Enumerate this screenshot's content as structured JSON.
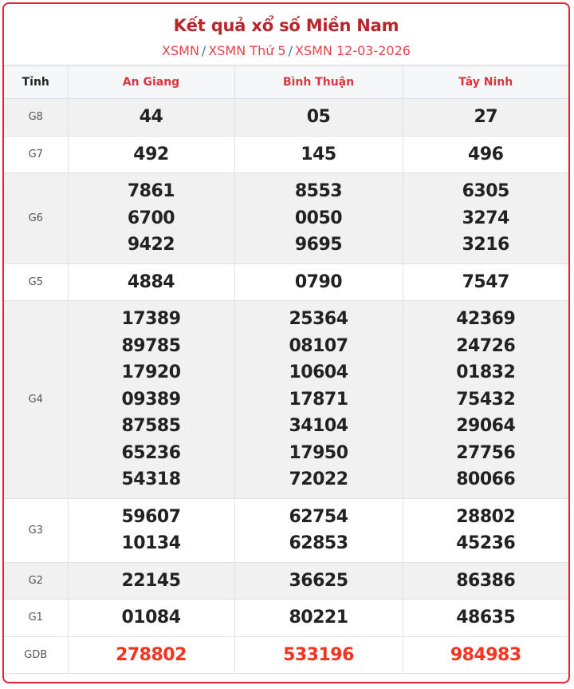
{
  "header": {
    "title": "Kết quả xổ số Miền Nam",
    "breadcrumbs": [
      "XSMN",
      "XSMN Thứ 5",
      "XSMN 12-03-2026"
    ],
    "separator": "/"
  },
  "colors": {
    "border": "#e8232b",
    "title": "#b9252a",
    "province": "#d9363e",
    "special_prize": "#f5331f"
  },
  "table": {
    "label_header": "Tỉnh",
    "provinces": [
      "An Giang",
      "Bình Thuận",
      "Tây Ninh"
    ],
    "rows": [
      {
        "prize": "G8",
        "values": [
          [
            "44"
          ],
          [
            "05"
          ],
          [
            "27"
          ]
        ]
      },
      {
        "prize": "G7",
        "values": [
          [
            "492"
          ],
          [
            "145"
          ],
          [
            "496"
          ]
        ]
      },
      {
        "prize": "G6",
        "values": [
          [
            "7861",
            "6700",
            "9422"
          ],
          [
            "8553",
            "0050",
            "9695"
          ],
          [
            "6305",
            "3274",
            "3216"
          ]
        ]
      },
      {
        "prize": "G5",
        "values": [
          [
            "4884"
          ],
          [
            "0790"
          ],
          [
            "7547"
          ]
        ]
      },
      {
        "prize": "G4",
        "values": [
          [
            "17389",
            "89785",
            "17920",
            "09389",
            "87585",
            "65236",
            "54318"
          ],
          [
            "25364",
            "08107",
            "10604",
            "17871",
            "34104",
            "17950",
            "72022"
          ],
          [
            "42369",
            "24726",
            "01832",
            "75432",
            "29064",
            "27756",
            "80066"
          ]
        ]
      },
      {
        "prize": "G3",
        "values": [
          [
            "59607",
            "10134"
          ],
          [
            "62754",
            "62853"
          ],
          [
            "28802",
            "45236"
          ]
        ]
      },
      {
        "prize": "G2",
        "values": [
          [
            "22145"
          ],
          [
            "36625"
          ],
          [
            "86386"
          ]
        ]
      },
      {
        "prize": "G1",
        "values": [
          [
            "01084"
          ],
          [
            "80221"
          ],
          [
            "48635"
          ]
        ]
      },
      {
        "prize": "GDB",
        "values": [
          [
            "278802"
          ],
          [
            "533196"
          ],
          [
            "984983"
          ]
        ],
        "special": true
      }
    ]
  }
}
